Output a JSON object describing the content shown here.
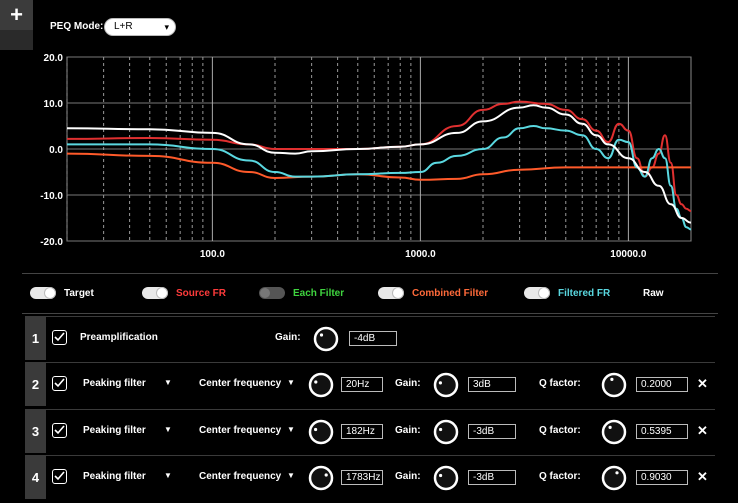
{
  "toolbar": {
    "add_label": "+"
  },
  "peq_mode": {
    "label": "PEQ Mode:",
    "value": "L+R"
  },
  "chart_data": {
    "type": "line",
    "x_scale": "log",
    "xlim": [
      20,
      20000
    ],
    "ylim": [
      -20,
      20
    ],
    "y_ticks": [
      "20.0",
      "10.0",
      "0.0",
      "-10.0",
      "-20.0"
    ],
    "x_ticks": [
      "100.0",
      "1000.0",
      "10000.0"
    ],
    "grid": true,
    "series": [
      {
        "name": "Source FR",
        "color": "#e03030",
        "points": [
          [
            20,
            2.2
          ],
          [
            50,
            2.4
          ],
          [
            100,
            2.0
          ],
          [
            150,
            1.0
          ],
          [
            200,
            0
          ],
          [
            300,
            0
          ],
          [
            500,
            0
          ],
          [
            800,
            0.5
          ],
          [
            1000,
            1
          ],
          [
            1500,
            5
          ],
          [
            2000,
            8.5
          ],
          [
            2500,
            9.8
          ],
          [
            3000,
            10.3
          ],
          [
            4000,
            9.8
          ],
          [
            5000,
            8.5
          ],
          [
            6000,
            6.5
          ],
          [
            7000,
            4
          ],
          [
            8000,
            1.5
          ],
          [
            9000,
            5.5
          ],
          [
            10000,
            4
          ],
          [
            11000,
            -2
          ],
          [
            12000,
            -6
          ],
          [
            13000,
            -4
          ],
          [
            14000,
            -1
          ],
          [
            15000,
            3
          ],
          [
            16000,
            -3
          ],
          [
            17000,
            -10
          ],
          [
            18000,
            -12
          ],
          [
            19000,
            -13
          ],
          [
            20000,
            -13.5
          ]
        ]
      },
      {
        "name": "Combined Filter",
        "color": "#ff5a2a",
        "points": [
          [
            20,
            -1
          ],
          [
            50,
            -1.5
          ],
          [
            100,
            -3
          ],
          [
            150,
            -5
          ],
          [
            200,
            -6.3
          ],
          [
            300,
            -6
          ],
          [
            500,
            -5.5
          ],
          [
            800,
            -6.2
          ],
          [
            1000,
            -6.7
          ],
          [
            1500,
            -6.5
          ],
          [
            2000,
            -5.5
          ],
          [
            3000,
            -4.5
          ],
          [
            5000,
            -4
          ],
          [
            10000,
            -4
          ],
          [
            20000,
            -4
          ]
        ]
      },
      {
        "name": "Filtered FR",
        "color": "#5ad8e0",
        "points": [
          [
            20,
            1
          ],
          [
            50,
            1
          ],
          [
            100,
            0
          ],
          [
            150,
            -2.5
          ],
          [
            200,
            -5
          ],
          [
            250,
            -6
          ],
          [
            300,
            -6
          ],
          [
            500,
            -5.5
          ],
          [
            800,
            -5.2
          ],
          [
            1000,
            -5
          ],
          [
            1200,
            -3
          ],
          [
            1500,
            -1.5
          ],
          [
            2000,
            0
          ],
          [
            2500,
            2.5
          ],
          [
            3000,
            4.5
          ],
          [
            3500,
            5
          ],
          [
            4000,
            4.5
          ],
          [
            5000,
            4
          ],
          [
            6000,
            3
          ],
          [
            7000,
            0
          ],
          [
            8000,
            -2
          ],
          [
            9000,
            2
          ],
          [
            10000,
            1.5
          ],
          [
            11000,
            -4
          ],
          [
            12000,
            -6
          ],
          [
            13000,
            -2
          ],
          [
            14000,
            0
          ],
          [
            15000,
            -2
          ],
          [
            16000,
            -8
          ],
          [
            17000,
            -13
          ],
          [
            18000,
            -15
          ],
          [
            19000,
            -17
          ],
          [
            20000,
            -17.5
          ]
        ]
      },
      {
        "name": "Raw",
        "color": "#ffffff",
        "points": [
          [
            20,
            4.5
          ],
          [
            50,
            4.3
          ],
          [
            100,
            3.5
          ],
          [
            150,
            1
          ],
          [
            200,
            -0.8
          ],
          [
            250,
            -1
          ],
          [
            300,
            -0.5
          ],
          [
            500,
            0
          ],
          [
            800,
            0.5
          ],
          [
            1000,
            1
          ],
          [
            1500,
            3.5
          ],
          [
            2000,
            6
          ],
          [
            3000,
            9
          ],
          [
            3500,
            9.5
          ],
          [
            4000,
            9
          ],
          [
            5000,
            7.5
          ],
          [
            6000,
            5.5
          ],
          [
            7000,
            3
          ],
          [
            8000,
            1
          ],
          [
            10000,
            -2
          ],
          [
            12000,
            -5
          ],
          [
            14000,
            -8
          ],
          [
            16000,
            -12
          ],
          [
            18000,
            -15
          ],
          [
            20000,
            -16
          ]
        ]
      }
    ]
  },
  "legend": [
    {
      "label": "Target",
      "color": "#ffffff",
      "on": true
    },
    {
      "label": "Source FR",
      "color": "#ff3b3b",
      "on": true
    },
    {
      "label": "Each Filter",
      "color": "#3fd43f",
      "on": false
    },
    {
      "label": "Combined Filter",
      "color": "#ff6a3a",
      "on": true
    },
    {
      "label": "Filtered FR",
      "color": "#5ad8e0",
      "on": true
    },
    {
      "label": "Raw",
      "color": "#ffffff"
    }
  ],
  "preamp": {
    "number": "1",
    "label": "Preamplification",
    "gain_label": "Gain:",
    "gain_value": "-4dB"
  },
  "filters": [
    {
      "number": "2",
      "type": "Peaking filter",
      "freq_label": "Center frequency",
      "freq": "20Hz",
      "gain_label": "Gain:",
      "gain": "3dB",
      "q_label": "Q factor:",
      "q": "0.2000",
      "close": "✕"
    },
    {
      "number": "3",
      "type": "Peaking filter",
      "freq_label": "Center frequency",
      "freq": "182Hz",
      "gain_label": "Gain:",
      "gain": "-3dB",
      "q_label": "Q factor:",
      "q": "0.5395",
      "close": "✕"
    },
    {
      "number": "4",
      "type": "Peaking filter",
      "freq_label": "Center frequency",
      "freq": "1783Hz",
      "gain_label": "Gain:",
      "gain": "-3dB",
      "q_label": "Q factor:",
      "q": "0.9030",
      "close": "✕"
    }
  ]
}
